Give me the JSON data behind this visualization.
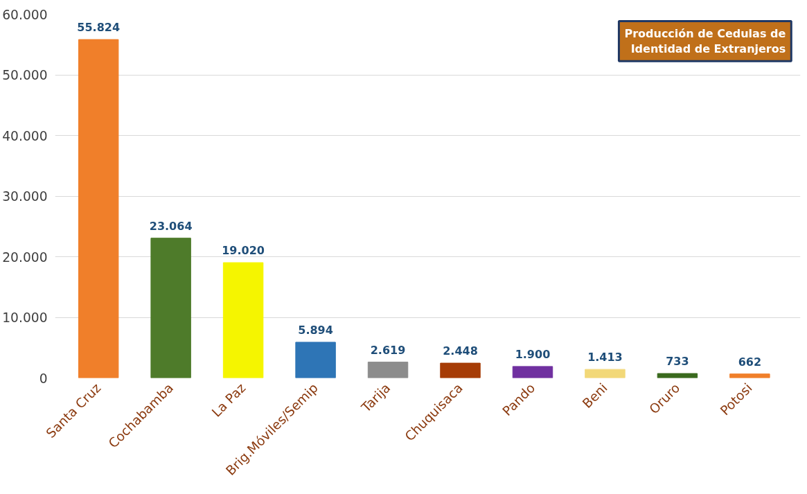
{
  "chart_data": {
    "type": "bar",
    "title": "Producción de Cedulas de Identidad de Extranjeros",
    "categories": [
      "Santa Cruz",
      "Cochabamba",
      "La Paz",
      "Brig.Móviles/Semip",
      "Tarija",
      "Chuquisaca",
      "Pando",
      "Beni",
      "Oruro",
      "Potosi"
    ],
    "values": [
      55824,
      23064,
      19020,
      5894,
      2619,
      2448,
      1900,
      1413,
      733,
      662
    ],
    "colors": [
      "#f07f2a",
      "#4e7b2a",
      "#f5f500",
      "#2e75b6",
      "#8c8c8c",
      "#a63c06",
      "#7030a0",
      "#f2d878",
      "#3a6a1e",
      "#f07f2a"
    ],
    "value_labels": [
      "55.824",
      "23.064",
      "19.020",
      "5.894",
      "2.619",
      "2.448",
      "1.900",
      "1.413",
      "733",
      "662"
    ],
    "ylim": [
      0,
      60000
    ],
    "yticks": [
      {
        "value": 0,
        "label": "0"
      },
      {
        "value": 10000,
        "label": "10.000"
      },
      {
        "value": 20000,
        "label": "20.000"
      },
      {
        "value": 30000,
        "label": "30.000"
      },
      {
        "value": 40000,
        "label": "40.000"
      },
      {
        "value": 50000,
        "label": "50.000"
      },
      {
        "value": 60000,
        "label": "60.000"
      }
    ],
    "grid": "y"
  }
}
